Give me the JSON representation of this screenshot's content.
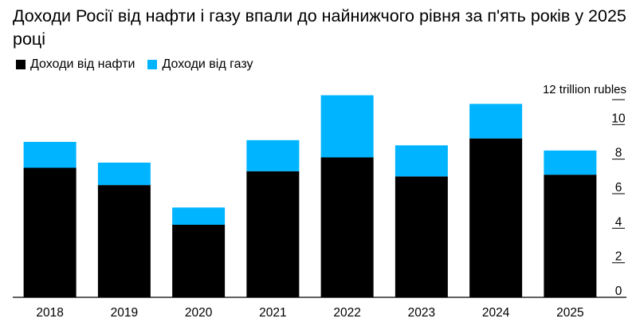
{
  "title": "Доходи Росії від нафти і газу впали до найнижчого рівня за п'ять років у 2025 році",
  "colors": {
    "oil": "#000000",
    "gas": "#00b4ff",
    "axis": "#000000"
  },
  "chart_data": {
    "type": "bar",
    "stacked": true,
    "categories": [
      "2018",
      "2019",
      "2020",
      "2021",
      "2022",
      "2023",
      "2024",
      "2025"
    ],
    "series": [
      {
        "name": "Доходи від нафти",
        "values": [
          7.5,
          6.5,
          4.2,
          7.3,
          8.1,
          7.0,
          9.2,
          7.1
        ]
      },
      {
        "name": "Доходи від газу",
        "values": [
          1.5,
          1.3,
          1.0,
          1.8,
          3.6,
          1.8,
          2.0,
          1.4
        ]
      }
    ],
    "ylabel": "12 trillion rubles",
    "ylim": [
      0,
      12
    ],
    "yticks": [
      0,
      2,
      4,
      6,
      8,
      10
    ],
    "grid": false,
    "legend": "top-left"
  }
}
